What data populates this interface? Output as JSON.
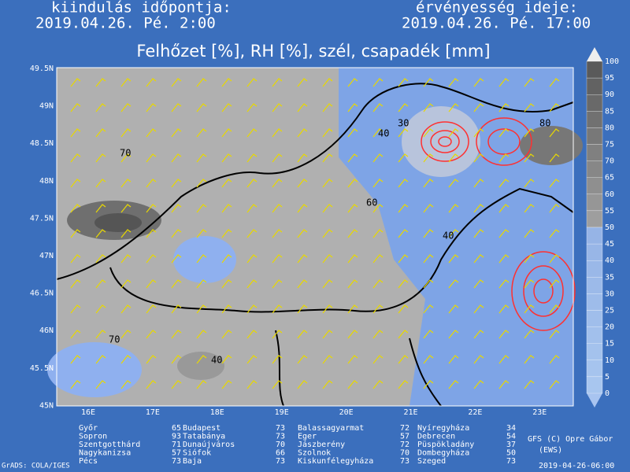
{
  "header": {
    "left_label": "kiindulás időpontja:",
    "left_time": "2019.04.26. Pé. 2:00",
    "right_label": "érvényesség ideje:",
    "right_time": "2019.04.26. Pé. 17:00"
  },
  "title": "Felhőzet [%], RH [%], szél, csapadék [mm]",
  "lat_labels": [
    "49.5N",
    "49N",
    "48.5N",
    "48N",
    "47.5N",
    "47N",
    "46.5N",
    "46N",
    "45.5N",
    "45N"
  ],
  "lon_labels": [
    "16E",
    "17E",
    "18E",
    "19E",
    "20E",
    "21E",
    "22E",
    "23E"
  ],
  "colorbar": [
    100,
    95,
    90,
    85,
    80,
    75,
    70,
    65,
    60,
    55,
    50,
    45,
    40,
    35,
    30,
    25,
    20,
    15,
    10,
    5,
    0
  ],
  "contour_labels": [
    "70",
    "30",
    "40",
    "80",
    "60",
    "40",
    "70",
    "40"
  ],
  "cities": [
    [
      {
        "name": "Győr",
        "value": 65
      },
      {
        "name": "Sopron",
        "value": 93
      },
      {
        "name": "Szentgotthárd",
        "value": 71
      },
      {
        "name": "Nagykanizsa",
        "value": 57
      },
      {
        "name": "Pécs",
        "value": 73
      }
    ],
    [
      {
        "name": "Budapest",
        "value": 73
      },
      {
        "name": "Tatabánya",
        "value": 73
      },
      {
        "name": "Dunaújváros",
        "value": 70
      },
      {
        "name": "Siófok",
        "value": 66
      },
      {
        "name": "Baja",
        "value": 73
      }
    ],
    [
      {
        "name": "Balassagyarmat",
        "value": 72
      },
      {
        "name": "Eger",
        "value": 57
      },
      {
        "name": "Jászberény",
        "value": 72
      },
      {
        "name": "Szolnok",
        "value": 70
      },
      {
        "name": "Kiskunfélegyháza",
        "value": 73
      }
    ],
    [
      {
        "name": "Nyíregyháza",
        "value": 34
      },
      {
        "name": "Debrecen",
        "value": 54
      },
      {
        "name": "Püspökladány",
        "value": 37
      },
      {
        "name": "Dombegyháza",
        "value": 50
      },
      {
        "name": "Szeged",
        "value": 73
      }
    ]
  ],
  "footer": {
    "credit": "GFS (C) Opre Gábor",
    "credit_sub": "(EWS)",
    "grads": "GrADS: COLA/IGES",
    "run": "2019-04-26-06:00"
  }
}
